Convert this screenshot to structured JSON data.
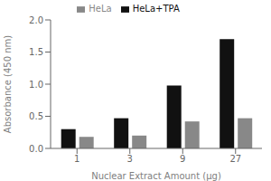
{
  "chart_data": {
    "type": "bar",
    "categories": [
      "1",
      "3",
      "9",
      "27"
    ],
    "series": [
      {
        "name": "HeLa+TPA",
        "color": "#111111",
        "values": [
          0.3,
          0.47,
          0.98,
          1.7
        ]
      },
      {
        "name": "HeLa",
        "color": "#888888",
        "values": [
          0.18,
          0.2,
          0.42,
          0.47
        ]
      }
    ],
    "xlabel": "Nuclear Extract Amount (μg)",
    "ylabel": "Absorbance (450 nm)",
    "ylim": [
      0.0,
      2.0
    ],
    "yticks": [
      {
        "value": 0.0,
        "label": "0.0"
      },
      0.5,
      {
        "value": 1.0,
        "label": "1.0"
      },
      1.5,
      {
        "value": 2.0,
        "label": "2.0"
      }
    ],
    "grid": false,
    "legend": "top"
  }
}
